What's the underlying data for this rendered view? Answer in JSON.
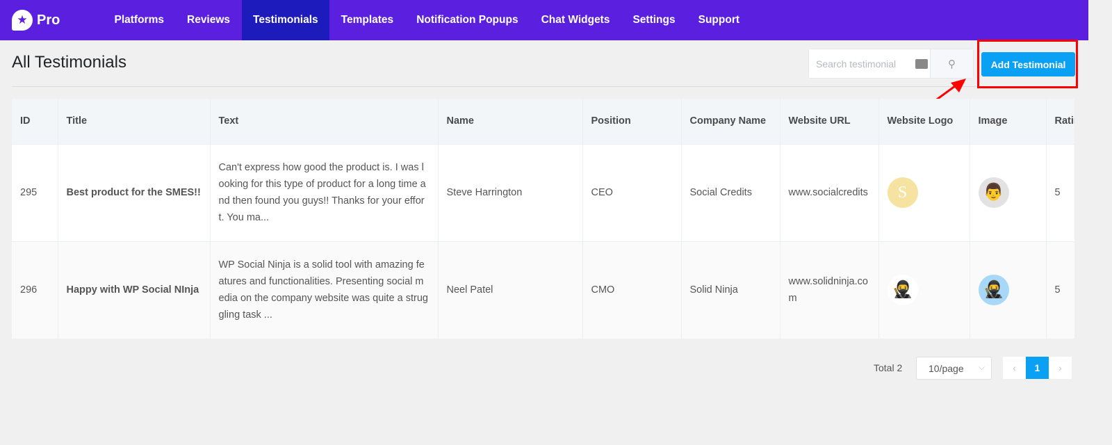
{
  "app": {
    "brand": "Pro"
  },
  "nav": [
    {
      "label": "Platforms"
    },
    {
      "label": "Reviews"
    },
    {
      "label": "Testimonials",
      "active": true
    },
    {
      "label": "Templates"
    },
    {
      "label": "Notification Popups"
    },
    {
      "label": "Chat Widgets"
    },
    {
      "label": "Settings"
    },
    {
      "label": "Support"
    }
  ],
  "page": {
    "title": "All Testimonials"
  },
  "search": {
    "placeholder": "Search testimonial"
  },
  "add_button": "Add Testimonial",
  "table": {
    "headers": [
      "ID",
      "Title",
      "Text",
      "Name",
      "Position",
      "Company Name",
      "Website URL",
      "Website Logo",
      "Image",
      "Rating"
    ],
    "rows": [
      {
        "id": "295",
        "title": "Best product for the SMES!!",
        "text": "Can't express how good the product is. I was looking for this type of product for a long time and then found you guys!! Thanks for your effort. You ma...",
        "name": "Steve Harrington",
        "position": "CEO",
        "company": "Social Credits",
        "url": "www.socialcredits",
        "logo": "S",
        "rating": "5"
      },
      {
        "id": "296",
        "title": "Happy with WP Social NInja",
        "text": "WP Social Ninja is a solid tool with amazing features and functionalities. Presenting social media on the company website was quite a struggling task ...",
        "name": "Neel Patel",
        "position": "CMO",
        "company": "Solid Ninja",
        "url": "www.solidninja.com",
        "logo": "ninja",
        "rating": "5"
      }
    ]
  },
  "pagination": {
    "total": "Total 2",
    "page_size": "10/page",
    "current": "1"
  },
  "colors": {
    "nav": "#5b1fe0",
    "nav_active": "#1e1bbd",
    "accent": "#0aa1f5",
    "highlight": "#ff0000"
  }
}
